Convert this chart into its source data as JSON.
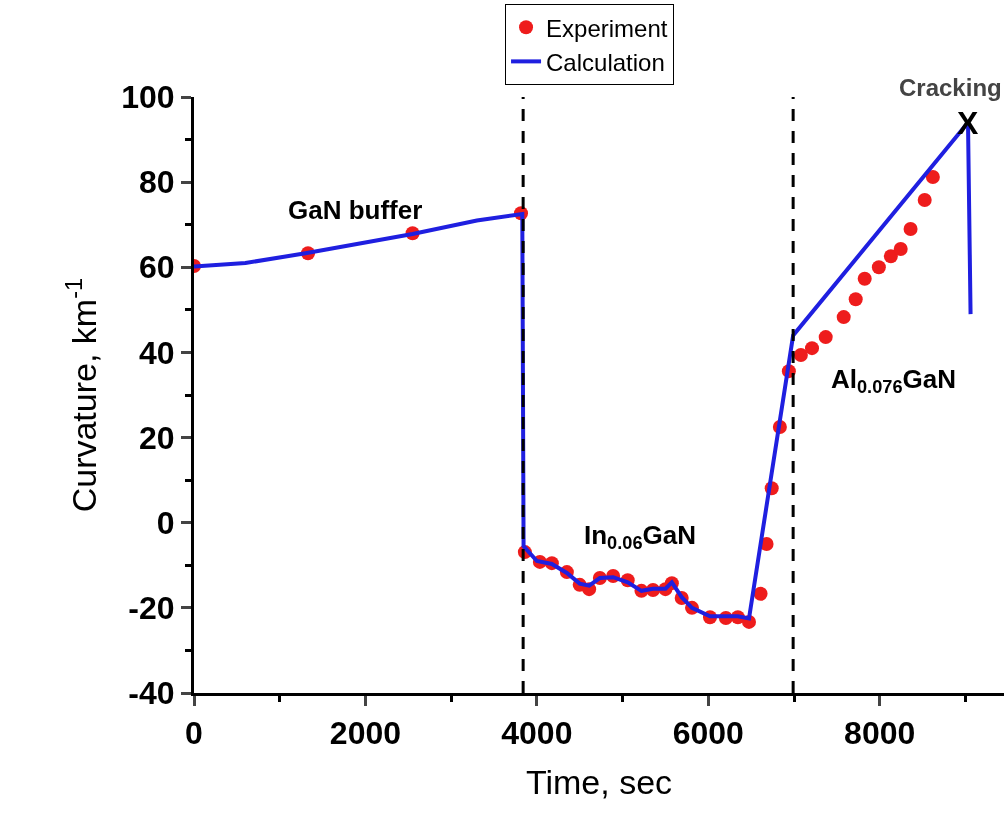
{
  "chart_data": {
    "type": "scatter",
    "xlabel": "Time, sec",
    "ylabel": "Curvature, km$^{-1}$",
    "xlim": [
      0,
      9450
    ],
    "ylim": [
      -40,
      100
    ],
    "xticks": [
      0,
      2000,
      4000,
      6000,
      8000
    ],
    "yticks": [
      -40,
      -20,
      0,
      20,
      40,
      60,
      80,
      100
    ],
    "legend": "top",
    "series": [
      {
        "name": "Experiment",
        "marker": "circle",
        "color": "#ee1c1c",
        "x": [
          0,
          1330,
          2550,
          3815,
          3860,
          4035,
          4175,
          4350,
          4500,
          4610,
          4735,
          4890,
          5060,
          5220,
          5355,
          5500,
          5575,
          5690,
          5810,
          6020,
          6205,
          6345,
          6475,
          6610,
          6680,
          6740,
          6835,
          6940,
          7080,
          7210,
          7370,
          7580,
          7720,
          7825,
          7990,
          8130,
          8245,
          8360,
          8525,
          8620
        ],
        "values": [
          60.3,
          63.3,
          68.0,
          72.7,
          -6.9,
          -9.2,
          -9.5,
          -11.6,
          -14.6,
          -15.6,
          -13,
          -12.5,
          -13.5,
          -16,
          -15.8,
          -15.6,
          -14.2,
          -17.7,
          -20,
          -22.2,
          -22.4,
          -22.2,
          -23.3,
          -16.7,
          -5.0,
          8.1,
          22.5,
          35.6,
          39.4,
          41,
          43.6,
          48.3,
          52.5,
          57.3,
          60,
          62.6,
          64.3,
          69,
          75.8,
          81.2
        ]
      },
      {
        "name": "Calculation",
        "type": "line",
        "line_style": "solid",
        "color": "#1f1fe0",
        "x": [
          0,
          600,
          1300,
          2550,
          3300,
          3830,
          3845,
          4000,
          4175,
          4350,
          4500,
          4610,
          4735,
          4890,
          5060,
          5220,
          5355,
          5500,
          5575,
          5690,
          5810,
          6020,
          6205,
          6345,
          6475,
          6990,
          9030,
          9060
        ],
        "values": [
          60.2,
          61,
          63.3,
          67.8,
          71,
          72.5,
          -5.5,
          -9,
          -9.7,
          -11.8,
          -14.3,
          -14.8,
          -13,
          -12.8,
          -14,
          -16,
          -15.5,
          -15.5,
          -14,
          -17.5,
          -20,
          -22,
          -22,
          -22,
          -22.5,
          44,
          94,
          49
        ]
      }
    ],
    "ref_lines": [
      {
        "axis": "x",
        "value": 3840,
        "color": "#000000",
        "line_style": "dashed"
      },
      {
        "axis": "x",
        "value": 6990,
        "color": "#000000",
        "line_style": "dashed"
      }
    ],
    "annotations": [
      "GaN buffer",
      "In$_{0.06}$GaN",
      "Al$_{0.076}$GaN",
      {
        "text": "X",
        "x": 9030,
        "y": 94
      },
      "Cracking"
    ]
  }
}
